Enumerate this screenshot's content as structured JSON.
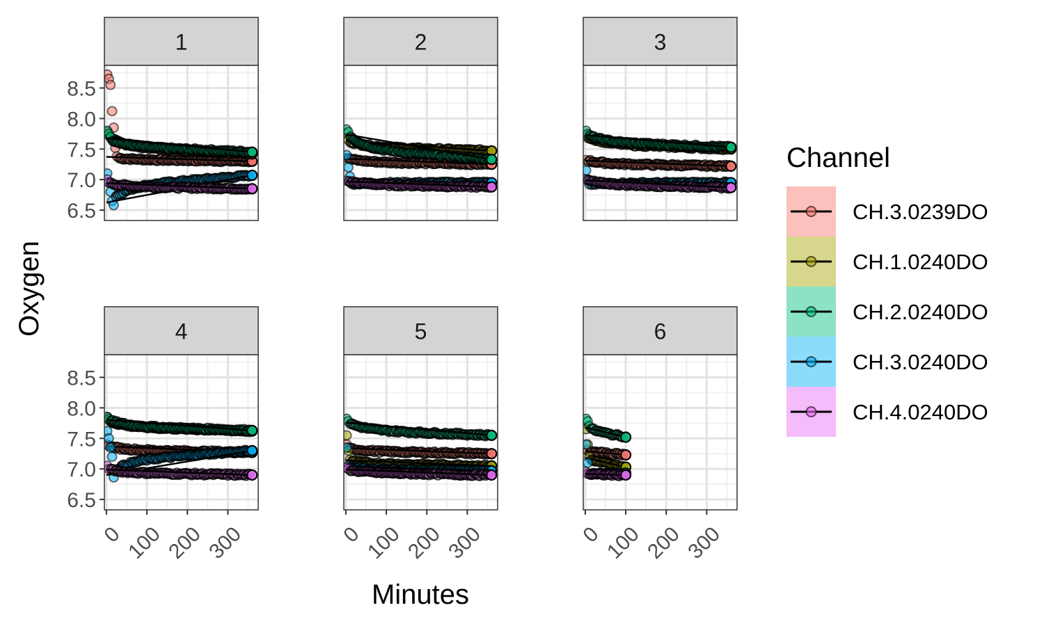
{
  "chart_data": {
    "type": "scatter",
    "facet_labels": [
      "1",
      "2",
      "3",
      "4",
      "5",
      "6"
    ],
    "xlabel": "Minutes",
    "ylabel": "Oxygen",
    "xlim": [
      -5,
      375
    ],
    "ylim": [
      6.33,
      8.87
    ],
    "x_ticks": [
      0,
      100,
      200,
      300
    ],
    "x_tick_labels": [
      "0",
      "100",
      "200",
      "300"
    ],
    "y_ticks": [
      6.5,
      7.0,
      7.5,
      8.0,
      8.5
    ],
    "y_tick_labels": [
      "6.5",
      "7.0",
      "7.5",
      "8.0",
      "8.5"
    ],
    "grid": true,
    "legend": {
      "title": "Channel",
      "position": "right",
      "items": [
        "CH.3.0239DO",
        "CH.1.0240DO",
        "CH.2.0240DO",
        "CH.3.0240DO",
        "CH.4.0240DO"
      ]
    },
    "series_colors": [
      "#F8766D",
      "#A3A500",
      "#00BF7D",
      "#00B0F6",
      "#E76BF3"
    ],
    "panels": [
      {
        "facet": "1",
        "series": [
          {
            "name": "CH.3.0239DO",
            "x_end": 360,
            "start_values": [
              8.72,
              8.65,
              8.55,
              8.12,
              7.85,
              7.52,
              7.38
            ],
            "end": 7.3
          },
          {
            "name": "CH.1.0240DO",
            "x_end": 360,
            "start_values": [
              7.78,
              7.72
            ],
            "end": 7.42
          },
          {
            "name": "CH.2.0240DO",
            "x_end": 360,
            "start_values": [
              7.8,
              7.75,
              7.7
            ],
            "end": 7.45
          },
          {
            "name": "CH.3.0240DO",
            "x_end": 360,
            "start_values": [
              7.1,
              6.95,
              6.8,
              6.65,
              6.58
            ],
            "end": 7.07
          },
          {
            "name": "CH.4.0240DO",
            "x_end": 360,
            "start_values": [
              7.0,
              6.95
            ],
            "end": 6.85
          }
        ]
      },
      {
        "facet": "2",
        "series": [
          {
            "name": "CH.3.0239DO",
            "x_end": 360,
            "start_values": [
              7.35
            ],
            "end": 7.25
          },
          {
            "name": "CH.1.0240DO",
            "x_end": 360,
            "start_values": [
              7.75,
              7.65
            ],
            "end": 7.47
          },
          {
            "name": "CH.2.0240DO",
            "x_end": 360,
            "start_values": [
              7.82,
              7.78
            ],
            "end": 7.33
          },
          {
            "name": "CH.3.0240DO",
            "x_end": 360,
            "start_values": [
              7.4,
              7.2,
              7.05,
              6.93
            ],
            "end": 6.95
          },
          {
            "name": "CH.4.0240DO",
            "x_end": 360,
            "start_values": [
              6.98
            ],
            "end": 6.88
          }
        ]
      },
      {
        "facet": "3",
        "series": [
          {
            "name": "CH.3.0239DO",
            "x_end": 360,
            "start_values": [
              7.32
            ],
            "end": 7.22
          },
          {
            "name": "CH.1.0240DO",
            "x_end": 360,
            "start_values": [
              7.72
            ],
            "end": 7.5
          },
          {
            "name": "CH.2.0240DO",
            "x_end": 360,
            "start_values": [
              7.8,
              7.75
            ],
            "end": 7.53
          },
          {
            "name": "CH.3.0240DO",
            "x_end": 360,
            "start_values": [
              7.15,
              7.0,
              6.92
            ],
            "end": 6.95
          },
          {
            "name": "CH.4.0240DO",
            "x_end": 360,
            "start_values": [
              7.0
            ],
            "end": 6.87
          }
        ]
      },
      {
        "facet": "4",
        "series": [
          {
            "name": "CH.3.0239DO",
            "x_end": 360,
            "start_values": [
              7.4,
              7.38
            ],
            "end": 7.27
          },
          {
            "name": "CH.1.0240DO",
            "x_end": 360,
            "start_values": [
              7.85,
              7.8
            ],
            "end": 7.62
          },
          {
            "name": "CH.2.0240DO",
            "x_end": 360,
            "start_values": [
              7.85,
              7.82
            ],
            "end": 7.63
          },
          {
            "name": "CH.3.0240DO",
            "x_end": 360,
            "start_values": [
              7.62,
              7.5,
              7.35,
              7.2,
              6.86
            ],
            "end": 7.3
          },
          {
            "name": "CH.4.0240DO",
            "x_end": 360,
            "start_values": [
              7.05,
              7.0
            ],
            "end": 6.9
          }
        ]
      },
      {
        "facet": "5",
        "series": [
          {
            "name": "CH.3.0239DO",
            "x_end": 360,
            "start_values": [
              7.4,
              7.35
            ],
            "end": 7.25
          },
          {
            "name": "CH.1.0240DO",
            "x_end": 360,
            "start_values": [
              7.55,
              7.3,
              7.15
            ],
            "end": 7.05
          },
          {
            "name": "CH.2.0240DO",
            "x_end": 360,
            "start_values": [
              7.82,
              7.78
            ],
            "end": 7.55
          },
          {
            "name": "CH.3.0240DO",
            "x_end": 360,
            "start_values": [
              7.35,
              7.05
            ],
            "end": 6.97
          },
          {
            "name": "CH.4.0240DO",
            "x_end": 360,
            "start_values": [
              7.02,
              7.0
            ],
            "end": 6.9
          }
        ]
      },
      {
        "facet": "6",
        "series": [
          {
            "name": "CH.3.0239DO",
            "x_end": 100,
            "start_values": [
              7.32,
              7.3
            ],
            "end": 7.23
          },
          {
            "name": "CH.1.0240DO",
            "x_end": 100,
            "start_values": [
              7.65,
              7.4,
              7.2
            ],
            "end": 7.03
          },
          {
            "name": "CH.2.0240DO",
            "x_end": 100,
            "start_values": [
              7.82,
              7.78,
              7.7
            ],
            "end": 7.52
          },
          {
            "name": "CH.3.0240DO",
            "x_end": 100,
            "start_values": [
              7.4,
              7.1,
              6.92
            ],
            "end": 6.93
          },
          {
            "name": "CH.4.0240DO",
            "x_end": 100,
            "start_values": [
              6.95,
              6.92
            ],
            "end": 6.9
          }
        ]
      }
    ]
  }
}
